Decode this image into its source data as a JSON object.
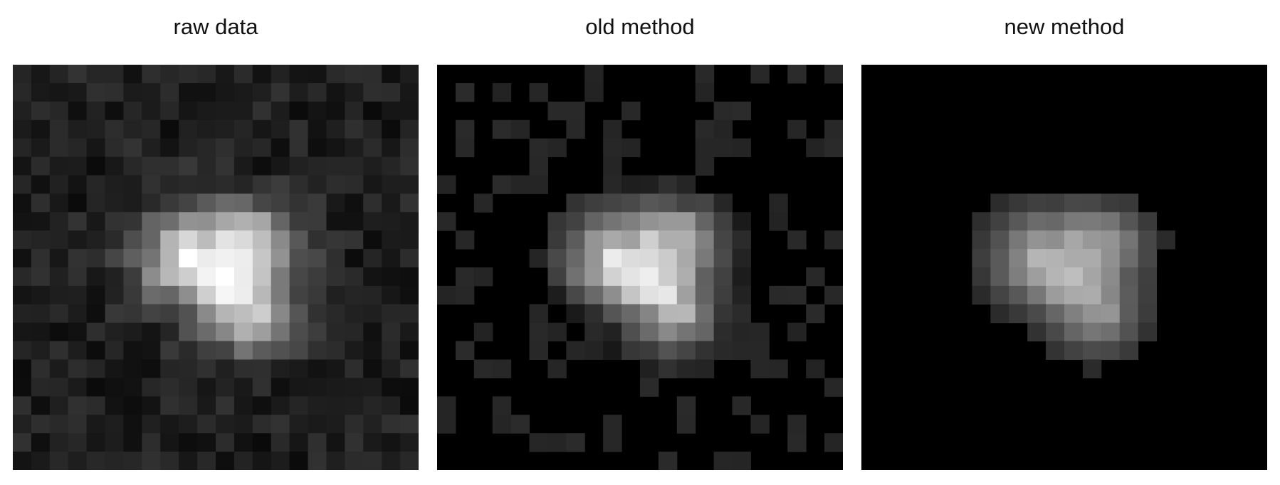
{
  "figure": {
    "background_color": "#ffffff",
    "panels": [
      {
        "id": "raw",
        "title": "raw data"
      },
      {
        "id": "old",
        "title": "old method"
      },
      {
        "id": "new",
        "title": "new method"
      }
    ]
  }
}
